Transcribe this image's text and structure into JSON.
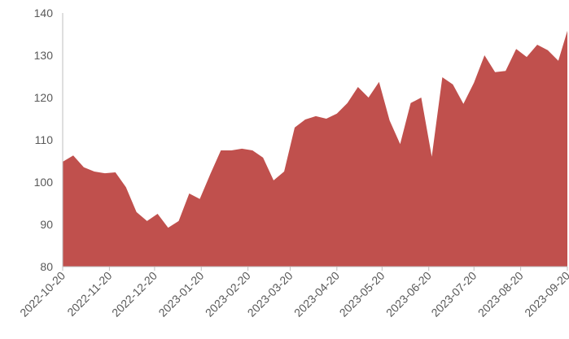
{
  "chart_data": {
    "type": "area",
    "color": "#c0504d",
    "x": [
      "2022-10-20",
      "2022-10-27",
      "2022-11-03",
      "2022-11-10",
      "2022-11-17",
      "2022-11-24",
      "2022-12-01",
      "2022-12-08",
      "2022-12-15",
      "2022-12-22",
      "2022-12-29",
      "2023-01-05",
      "2023-01-12",
      "2023-01-19",
      "2023-01-26",
      "2023-02-02",
      "2023-02-09",
      "2023-02-16",
      "2023-02-23",
      "2023-03-02",
      "2023-03-09",
      "2023-03-16",
      "2023-03-23",
      "2023-03-30",
      "2023-04-06",
      "2023-04-13",
      "2023-04-20",
      "2023-04-27",
      "2023-05-04",
      "2023-05-11",
      "2023-05-18",
      "2023-05-25",
      "2023-06-01",
      "2023-06-08",
      "2023-06-15",
      "2023-06-22",
      "2023-06-29",
      "2023-07-06",
      "2023-07-13",
      "2023-07-20",
      "2023-07-27",
      "2023-08-03",
      "2023-08-10",
      "2023-08-17",
      "2023-08-24",
      "2023-08-31",
      "2023-09-07",
      "2023-09-14",
      "2023-09-20"
    ],
    "values": [
      104.8,
      106.3,
      103.5,
      102.5,
      102.1,
      102.3,
      98.8,
      92.9,
      90.8,
      92.5,
      89.2,
      90.8,
      97.3,
      96,
      101.9,
      107.5,
      107.5,
      107.9,
      107.5,
      105.8,
      100.4,
      102.5,
      112.9,
      114.8,
      115.6,
      115,
      116.2,
      118.7,
      122.5,
      120,
      123.7,
      114.6,
      109,
      118.7,
      120,
      106,
      124.8,
      123.1,
      118.5,
      123.5,
      130,
      126,
      126.3,
      131.5,
      129.6,
      132.5,
      131.2,
      128.7,
      135.8
    ],
    "xlim": [
      "2022-10-20",
      "2023-09-20"
    ],
    "xticks": [
      "2022-10-20",
      "2022-11-20",
      "2022-12-20",
      "2023-01-20",
      "2023-02-20",
      "2023-03-20",
      "2023-04-20",
      "2023-05-20",
      "2023-06-20",
      "2023-07-20",
      "2023-08-20",
      "2023-09-20"
    ],
    "ylim": [
      80,
      140
    ],
    "yticks": [
      80,
      90,
      100,
      110,
      120,
      130,
      140
    ],
    "grid": false
  }
}
